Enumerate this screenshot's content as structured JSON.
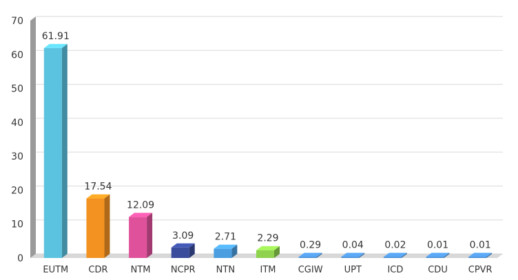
{
  "chart_data": {
    "type": "bar",
    "title": "",
    "xlabel": "",
    "ylabel": "",
    "ylim": [
      0,
      70
    ],
    "yticks": [
      0,
      10,
      20,
      30,
      40,
      50,
      60,
      70
    ],
    "grid": true,
    "categories": [
      "EUTM",
      "CDR",
      "NTM",
      "NCPR",
      "NTN",
      "ITM",
      "CGIW",
      "UPT",
      "ICD",
      "CDU",
      "CPVR"
    ],
    "values": [
      61.91,
      17.54,
      12.09,
      3.09,
      2.71,
      2.29,
      0.29,
      0.04,
      0.02,
      0.01,
      0.01
    ],
    "value_labels": [
      "61.91",
      "17.54",
      "12.09",
      "3.09",
      "2.71",
      "2.29",
      "0.29",
      "0.04",
      "0.02",
      "0.01",
      "0.01"
    ],
    "colors": [
      "#5bc3df",
      "#f39221",
      "#e0519b",
      "#3a4c9c",
      "#4b9fe0",
      "#8ed24e",
      "#4d8fd1",
      "#4d8fd1",
      "#4d8fd1",
      "#4d8fd1",
      "#4d8fd1"
    ]
  }
}
